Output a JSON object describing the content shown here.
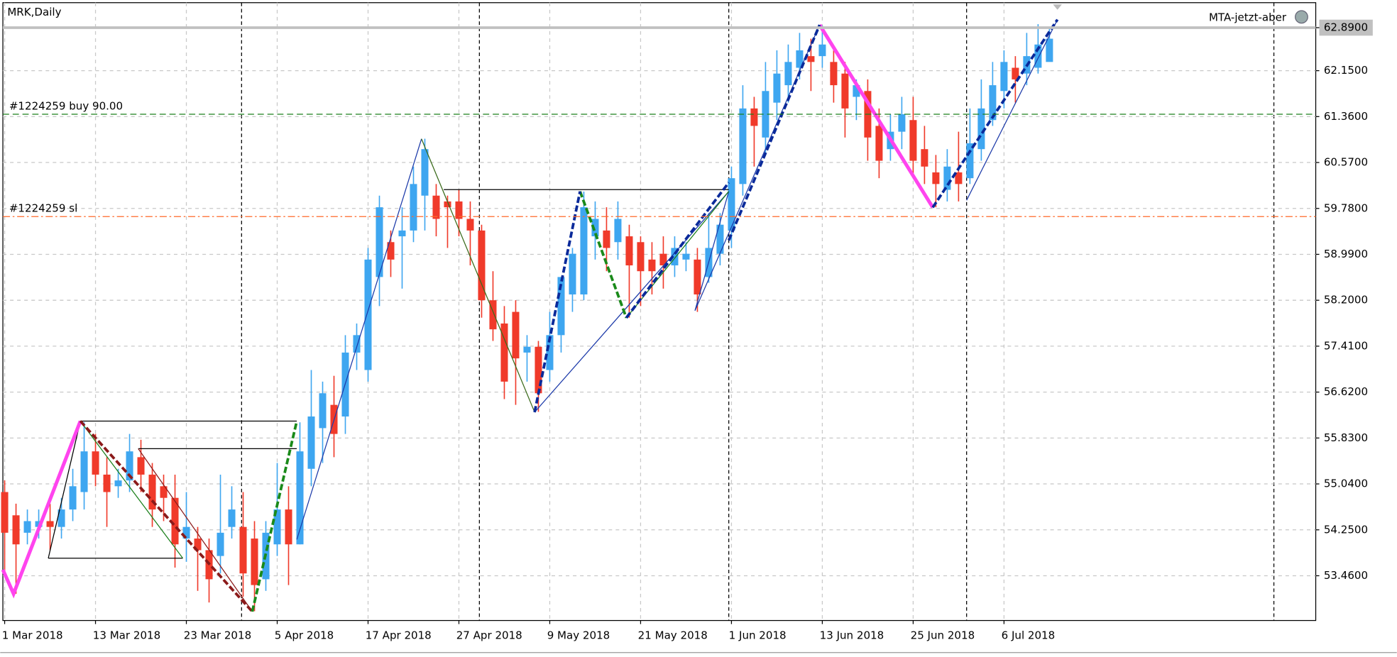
{
  "chart_data": {
    "type": "candlestick",
    "title": "MRK,Daily",
    "indicator": "MTA-jetzt-aber",
    "categories": [
      "1 Mar 2018",
      null,
      null,
      null,
      null,
      null,
      null,
      null,
      "13 Mar 2018",
      null,
      null,
      null,
      null,
      null,
      null,
      null,
      "23 Mar 2018",
      null,
      null,
      null,
      null,
      null,
      null,
      null,
      "5 Apr 2018",
      null,
      null,
      null,
      null,
      null,
      null,
      null,
      "17 Apr 2018",
      null,
      null,
      null,
      null,
      null,
      null,
      null,
      "27 Apr 2018",
      null,
      null,
      null,
      null,
      null,
      null,
      null,
      "9 May 2018",
      null,
      null,
      null,
      null,
      null,
      null,
      null,
      "21 May 2018",
      null,
      null,
      null,
      null,
      null,
      null,
      null,
      "1 Jun 2018",
      null,
      null,
      null,
      null,
      null,
      null,
      null,
      "13 Jun 2018",
      null,
      null,
      null,
      null,
      null,
      null,
      null,
      "25 Jun 2018",
      null,
      null,
      null,
      null,
      null,
      null,
      null,
      "6 Jul 2018",
      null,
      null,
      null,
      null
    ],
    "open": [
      54.9,
      54.5,
      54.2,
      54.3,
      54.4,
      54.3,
      54.6,
      54.9,
      55.6,
      55.2,
      55.0,
      55.1,
      55.5,
      55.2,
      55.0,
      54.8,
      54.1,
      54.1,
      53.9,
      53.8,
      54.3,
      54.3,
      54.1,
      53.4,
      54.0,
      54.6,
      54.0,
      55.3,
      56.0,
      56.4,
      56.2,
      57.3,
      57.0,
      58.6,
      59.2,
      59.3,
      59.4,
      60.0,
      60.0,
      59.9,
      59.9,
      59.6,
      59.4,
      58.2,
      57.8,
      58.0,
      57.3,
      57.4,
      57.0,
      57.6,
      58.3,
      58.3,
      59.3,
      59.4,
      59.2,
      59.3,
      59.2,
      58.9,
      59.0,
      58.8,
      58.9,
      58.9,
      58.6,
      59.0,
      59.4,
      60.2,
      61.5,
      61.0,
      61.6,
      61.9,
      62.2,
      62.4,
      62.4,
      62.3,
      62.1,
      61.7,
      61.8,
      61.2,
      60.8,
      61.1,
      61.3,
      60.8,
      60.4,
      60.1,
      60.4,
      60.3,
      60.8,
      61.3,
      61.8,
      62.2,
      62.1,
      62.2,
      62.3
    ],
    "high": [
      55.1,
      54.7,
      54.6,
      54.6,
      54.7,
      54.8,
      55.3,
      56.1,
      55.9,
      55.5,
      55.3,
      55.9,
      55.8,
      55.4,
      55.2,
      55.2,
      54.9,
      54.3,
      54.1,
      55.2,
      55.0,
      54.9,
      54.4,
      54.4,
      55.4,
      55.0,
      56.1,
      57.0,
      56.8,
      56.9,
      57.6,
      57.8,
      59.1,
      60.0,
      59.4,
      59.8,
      60.5,
      60.98,
      60.2,
      60.0,
      60.1,
      59.9,
      59.5,
      58.7,
      58.1,
      58.2,
      57.6,
      57.5,
      58.0,
      58.6,
      59.1,
      60.07,
      59.9,
      59.8,
      59.9,
      59.5,
      59.3,
      59.2,
      59.3,
      59.3,
      59.2,
      59.1,
      59.7,
      59.7,
      60.5,
      61.9,
      61.7,
      62.3,
      62.5,
      62.6,
      62.8,
      62.7,
      62.93,
      62.5,
      62.3,
      62.0,
      62.0,
      61.5,
      61.4,
      61.7,
      61.7,
      61.2,
      60.7,
      60.8,
      61.1,
      61.5,
      62.0,
      62.3,
      62.5,
      62.4,
      62.8,
      62.95,
      62.9
    ],
    "low": [
      53.5,
      53.15,
      54.0,
      54.1,
      53.9,
      54.1,
      54.4,
      54.6,
      55.0,
      54.3,
      54.8,
      54.9,
      54.9,
      54.3,
      54.4,
      53.6,
      53.7,
      53.2,
      53.0,
      53.5,
      54.1,
      53.1,
      52.85,
      53.2,
      53.8,
      53.3,
      54.0,
      55.0,
      55.4,
      55.5,
      55.9,
      57.0,
      56.8,
      58.1,
      58.6,
      58.4,
      59.2,
      59.4,
      59.3,
      59.1,
      59.3,
      58.8,
      57.9,
      57.5,
      56.5,
      56.4,
      56.8,
      56.28,
      56.8,
      57.3,
      58.0,
      58.2,
      58.9,
      58.7,
      58.9,
      57.9,
      58.1,
      58.3,
      58.4,
      58.6,
      58.7,
      58.0,
      58.5,
      58.8,
      59.1,
      60.0,
      60.5,
      60.7,
      61.3,
      61.6,
      62.0,
      61.8,
      62.2,
      61.6,
      61.0,
      61.3,
      60.6,
      60.3,
      60.6,
      60.8,
      60.3,
      60.2,
      59.8,
      59.9,
      59.9,
      60.2,
      60.6,
      61.2,
      61.5,
      61.6,
      61.9,
      62.1,
      62.4
    ],
    "close": [
      54.2,
      54.0,
      54.4,
      54.4,
      54.3,
      54.6,
      55.0,
      55.6,
      55.2,
      54.9,
      55.1,
      55.6,
      55.2,
      54.6,
      54.8,
      54.0,
      54.3,
      53.9,
      53.4,
      54.2,
      54.6,
      53.5,
      53.3,
      54.2,
      54.6,
      54.0,
      55.6,
      56.2,
      56.6,
      55.9,
      57.3,
      57.6,
      58.9,
      59.8,
      58.9,
      59.4,
      60.2,
      60.8,
      59.6,
      59.8,
      59.6,
      59.4,
      58.2,
      57.7,
      56.8,
      57.2,
      57.4,
      56.6,
      57.6,
      58.6,
      59.0,
      59.8,
      59.6,
      59.1,
      59.6,
      58.8,
      58.7,
      58.7,
      58.8,
      59.1,
      59.0,
      58.3,
      59.1,
      59.5,
      60.3,
      61.5,
      61.2,
      61.8,
      62.1,
      62.3,
      62.5,
      62.3,
      62.6,
      61.9,
      61.5,
      61.9,
      61.0,
      60.6,
      61.1,
      61.4,
      60.6,
      60.5,
      60.2,
      60.5,
      60.2,
      60.9,
      61.5,
      61.9,
      62.3,
      62.0,
      62.4,
      62.6,
      62.7
    ],
    "up_color": "#3ea6f0",
    "down_color": "#f03a2a",
    "ylim": [
      52.69,
      63.32
    ],
    "yticks": [
      {
        "value": 62.89,
        "label": "62.8900"
      },
      {
        "value": 62.15,
        "label": "62.1500"
      },
      {
        "value": 61.36,
        "label": "61.3600"
      },
      {
        "value": 60.57,
        "label": "60.5700"
      },
      {
        "value": 59.78,
        "label": "59.7800"
      },
      {
        "value": 58.99,
        "label": "58.9900"
      },
      {
        "value": 58.2,
        "label": "58.2000"
      },
      {
        "value": 57.41,
        "label": "57.4100"
      },
      {
        "value": 56.62,
        "label": "56.6200"
      },
      {
        "value": 55.83,
        "label": "55.8300"
      },
      {
        "value": 55.04,
        "label": "55.0400"
      },
      {
        "value": 54.25,
        "label": "54.2500"
      },
      {
        "value": 53.46,
        "label": "53.4600"
      }
    ],
    "grid": true,
    "levels": [
      {
        "label": "#1224259 buy 90.00",
        "value": 61.4,
        "color": "#1a7f1a"
      },
      {
        "label": "#1224259 sl",
        "value": 59.64,
        "color": "#ff6a2a"
      }
    ]
  }
}
